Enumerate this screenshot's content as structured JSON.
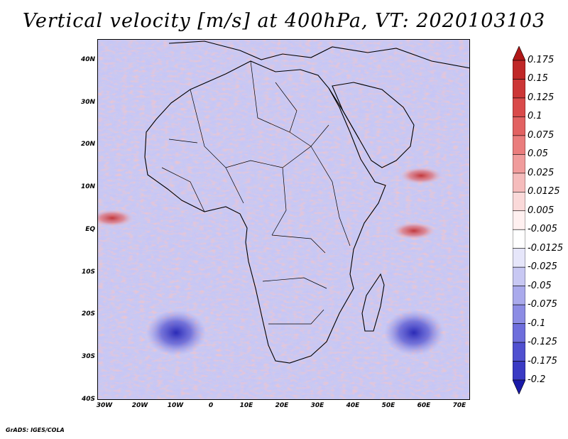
{
  "title": "Vertical velocity [m/s] at 400hPa, VT: 2020103103",
  "footer": "GrADS: IGES/COLA",
  "map": {
    "variable": "Vertical velocity",
    "units": "m/s",
    "level": "400hPa",
    "valid_time": "2020103103",
    "lon_range": [
      -32,
      73
    ],
    "lat_range": [
      -40,
      45
    ],
    "lat_labels": [
      {
        "value": 40,
        "text": "40N"
      },
      {
        "value": 30,
        "text": "30N"
      },
      {
        "value": 20,
        "text": "20N"
      },
      {
        "value": 10,
        "text": "10N"
      },
      {
        "value": 0,
        "text": "EQ"
      },
      {
        "value": -10,
        "text": "10S"
      },
      {
        "value": -20,
        "text": "20S"
      },
      {
        "value": -30,
        "text": "30S"
      },
      {
        "value": -40,
        "text": "40S"
      }
    ],
    "lon_labels": [
      {
        "value": -30,
        "text": "30W"
      },
      {
        "value": -20,
        "text": "20W"
      },
      {
        "value": -10,
        "text": "10W"
      },
      {
        "value": 0,
        "text": "0"
      },
      {
        "value": 10,
        "text": "10E"
      },
      {
        "value": 20,
        "text": "20E"
      },
      {
        "value": 30,
        "text": "30E"
      },
      {
        "value": 40,
        "text": "40E"
      },
      {
        "value": 50,
        "text": "50E"
      },
      {
        "value": 60,
        "text": "60E"
      },
      {
        "value": 70,
        "text": "70E"
      }
    ],
    "features": [
      {
        "name": "cyclone-south-indian-ocean",
        "lon": 57,
        "lat": -24,
        "sign": "negative"
      },
      {
        "name": "cyclone-south-atlantic",
        "lon": -10,
        "lat": -24,
        "sign": "negative"
      },
      {
        "name": "equatorial-ascent-atlantic",
        "lon": -28,
        "lat": 3,
        "sign": "positive"
      },
      {
        "name": "equatorial-ascent-indian",
        "lon": 57,
        "lat": 0,
        "sign": "positive"
      },
      {
        "name": "ascent-near-10N-60E",
        "lon": 59,
        "lat": 13,
        "sign": "positive"
      }
    ]
  },
  "colorbar": {
    "levels": [
      {
        "label": "0.175",
        "color": "#c02828"
      },
      {
        "label": "0.15",
        "color": "#cc3636"
      },
      {
        "label": "0.125",
        "color": "#d94a4a"
      },
      {
        "label": "0.1",
        "color": "#e26262"
      },
      {
        "label": "0.075",
        "color": "#ea7d7d"
      },
      {
        "label": "0.05",
        "color": "#f09c9c"
      },
      {
        "label": "0.025",
        "color": "#f5bcbc"
      },
      {
        "label": "0.0125",
        "color": "#fad9d9"
      },
      {
        "label": "0.005",
        "color": "#fff0f0"
      },
      {
        "label": "-0.005",
        "color": "#ffffff"
      },
      {
        "label": "-0.0125",
        "color": "#e6e6fa"
      },
      {
        "label": "-0.025",
        "color": "#c8c8f3"
      },
      {
        "label": "-0.05",
        "color": "#aaaaec"
      },
      {
        "label": "-0.075",
        "color": "#8c8ce4"
      },
      {
        "label": "-0.1",
        "color": "#6e6edc"
      },
      {
        "label": "-0.125",
        "color": "#5050d0"
      },
      {
        "label": "-0.175",
        "color": "#3a3ac4"
      },
      {
        "label": "-0.2",
        "color": "#2222b4"
      }
    ],
    "max_color": "#b01818",
    "min_color": "#1a1aa8"
  }
}
